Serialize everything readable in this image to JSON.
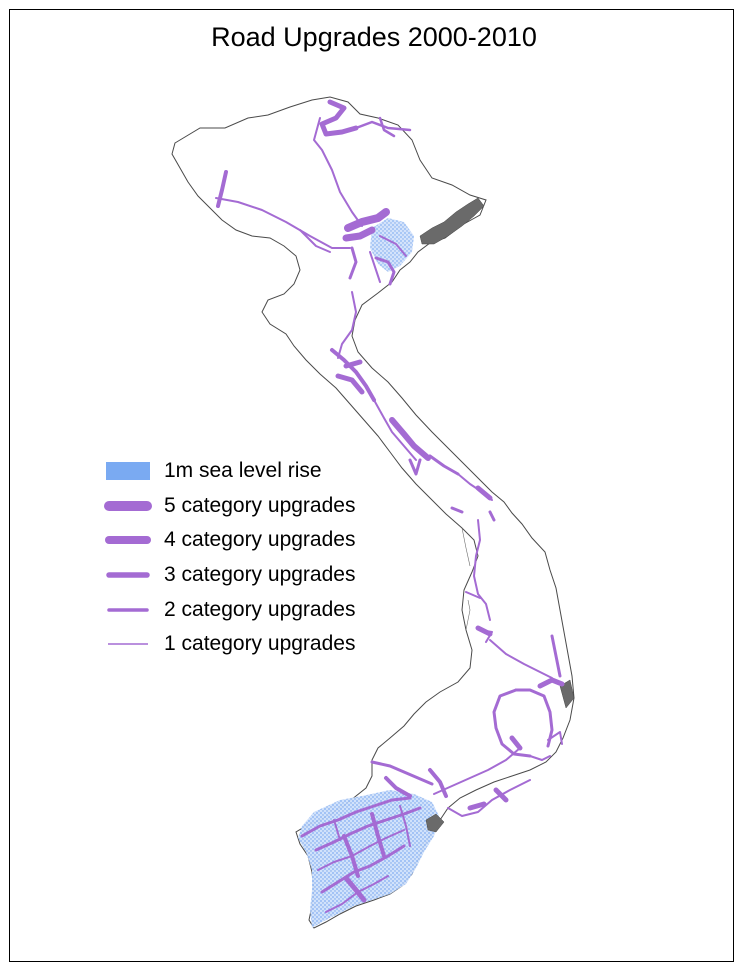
{
  "title": "Road Upgrades 2000-2010",
  "colors": {
    "road": "#a46bd3",
    "sea_level": "#7aaaf2",
    "border": "#4a4a4a",
    "frame": "#000000"
  },
  "legend": {
    "items": [
      {
        "label": "1m sea level rise",
        "type": "area"
      },
      {
        "label": "5 category upgrades",
        "type": "line",
        "level": 5
      },
      {
        "label": "4 category upgrades",
        "type": "line",
        "level": 4
      },
      {
        "label": "3 category upgrades",
        "type": "line",
        "level": 3
      },
      {
        "label": "2 category upgrades",
        "type": "line",
        "level": 2
      },
      {
        "label": "1 category upgrades",
        "type": "line",
        "level": 1
      }
    ]
  }
}
